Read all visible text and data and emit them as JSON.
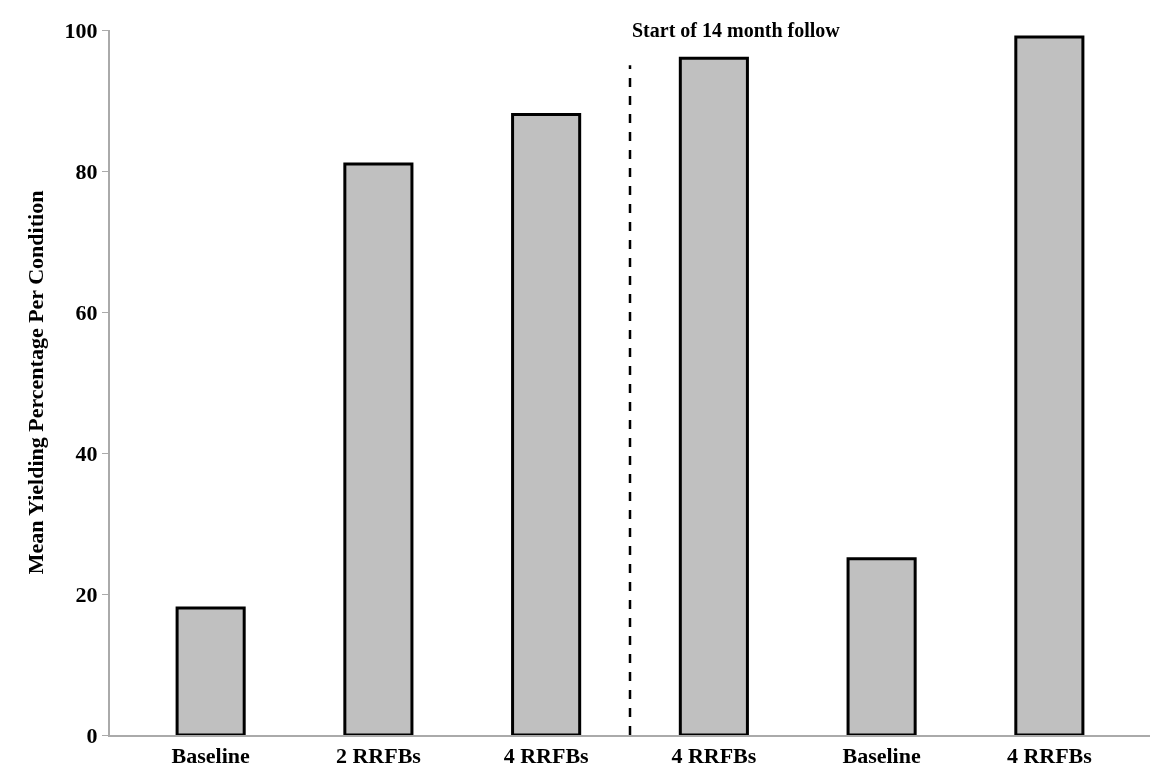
{
  "chart_data": {
    "type": "bar",
    "ylabel": "Mean Yielding Percentage Per Condition",
    "categories": [
      "Baseline",
      "2 RRFBs",
      "4 RRFBs",
      "4 RRFBs",
      "Baseline",
      "4 RRFBs"
    ],
    "values": [
      18,
      81,
      88,
      96,
      25,
      99
    ],
    "color": "#c0c0c0",
    "ylim": [
      0,
      100
    ],
    "yticks": [
      0,
      20,
      40,
      60,
      80,
      100
    ],
    "annotations": [
      "Start of 14 month follow"
    ]
  }
}
